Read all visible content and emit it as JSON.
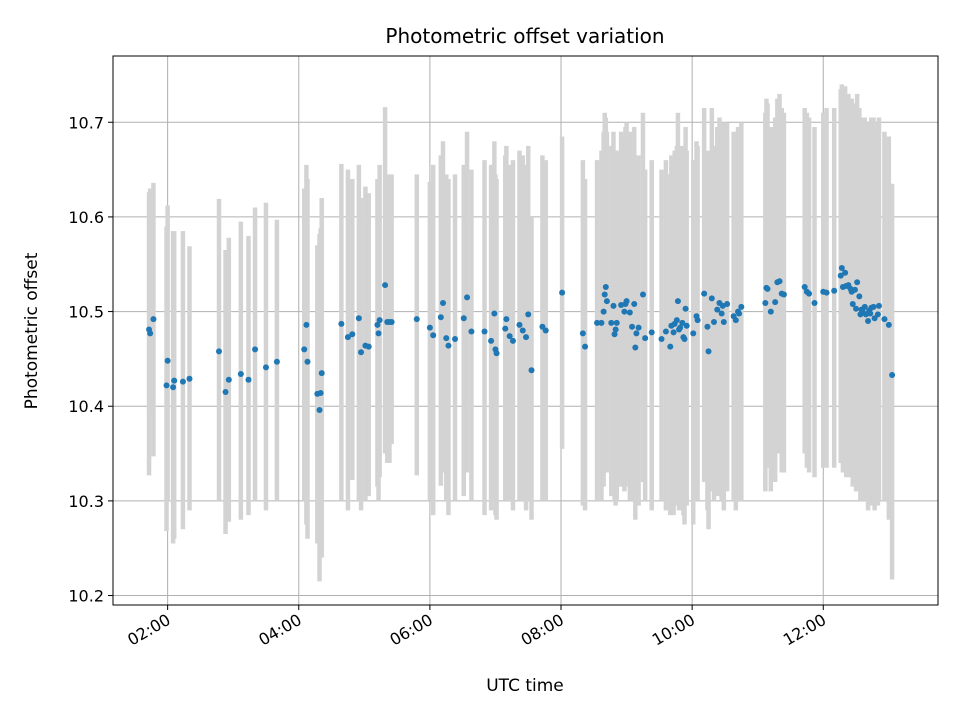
{
  "chart_data": {
    "type": "scatter",
    "title": "Photometric offset variation",
    "xlabel": "UTC time",
    "ylabel": "Photometric offset",
    "xlim": [
      "01:10",
      "13:45"
    ],
    "ylim": [
      10.19,
      10.77
    ],
    "x_ticks": [
      "02:00",
      "04:00",
      "06:00",
      "08:00",
      "10:00",
      "12:00"
    ],
    "y_ticks": [
      "10.2",
      "10.3",
      "10.4",
      "10.5",
      "10.6",
      "10.7"
    ],
    "grid": true,
    "point_color": "#1f77b4",
    "errorbar_color": "#d3d3d3",
    "series": [
      {
        "x": [
          "01:43",
          "01:44",
          "01:47",
          "01:59",
          "02:00",
          "02:05",
          "02:06",
          "02:14",
          "02:20",
          "02:47",
          "02:53",
          "02:56",
          "03:07",
          "03:14",
          "03:20",
          "03:30",
          "03:40",
          "04:05",
          "04:07",
          "04:08",
          "04:17",
          "04:19",
          "04:20",
          "04:21",
          "04:39",
          "04:45",
          "04:49",
          "04:55",
          "04:57",
          "05:01",
          "05:04",
          "05:12",
          "05:13",
          "05:14",
          "05:19",
          "05:21",
          "05:23",
          "05:25",
          "05:48",
          "06:00",
          "06:03",
          "06:10",
          "06:12",
          "06:15",
          "06:17",
          "06:23",
          "06:31",
          "06:34",
          "06:38",
          "06:50",
          "06:56",
          "06:59",
          "07:00",
          "07:01",
          "07:09",
          "07:10",
          "07:13",
          "07:16",
          "07:22",
          "07:25",
          "07:28",
          "07:30",
          "07:33",
          "07:43",
          "07:46",
          "08:01",
          "08:20",
          "08:22",
          "08:33",
          "08:37",
          "08:39",
          "08:40",
          "08:41",
          "08:42",
          "08:46",
          "08:48",
          "08:49",
          "08:50",
          "08:51",
          "08:55",
          "08:58",
          "08:59",
          "09:00",
          "09:03",
          "09:05",
          "09:07",
          "09:08",
          "09:09",
          "09:11",
          "09:15",
          "09:17",
          "09:23",
          "09:32",
          "09:36",
          "09:40",
          "09:41",
          "09:43",
          "09:44",
          "09:46",
          "09:47",
          "09:48",
          "09:49",
          "09:51",
          "09:52",
          "09:53",
          "09:54",
          "09:55",
          "10:01",
          "10:04",
          "10:05",
          "10:11",
          "10:14",
          "10:15",
          "10:18",
          "10:20",
          "10:23",
          "10:25",
          "10:27",
          "10:28",
          "10:29",
          "10:32",
          "10:38",
          "10:40",
          "10:42",
          "10:43",
          "10:45",
          "11:07",
          "11:08",
          "11:09",
          "11:12",
          "11:16",
          "11:18",
          "11:20",
          "11:22",
          "11:24",
          "11:43",
          "11:45",
          "11:47",
          "11:52",
          "12:00",
          "12:03",
          "12:10",
          "12:16",
          "12:17",
          "12:18",
          "12:20",
          "12:21",
          "12:23",
          "12:25",
          "12:26",
          "12:27",
          "12:29",
          "12:30",
          "12:31",
          "12:33",
          "12:34",
          "12:35",
          "12:36",
          "12:38",
          "12:39",
          "12:41",
          "12:42",
          "12:43",
          "12:44",
          "12:46",
          "12:47",
          "12:50",
          "12:51",
          "12:56",
          "13:00",
          "13:03"
        ],
        "y": [
          10.481,
          10.477,
          10.492,
          10.422,
          10.448,
          10.42,
          10.427,
          10.426,
          10.429,
          10.458,
          10.415,
          10.428,
          10.434,
          10.428,
          10.46,
          10.441,
          10.447,
          10.46,
          10.486,
          10.447,
          10.413,
          10.396,
          10.414,
          10.435,
          10.487,
          10.473,
          10.476,
          10.493,
          10.457,
          10.464,
          10.463,
          10.486,
          10.477,
          10.491,
          10.528,
          10.489,
          10.489,
          10.489,
          10.492,
          10.483,
          10.475,
          10.494,
          10.509,
          10.472,
          10.464,
          10.471,
          10.493,
          10.515,
          10.479,
          10.479,
          10.469,
          10.498,
          10.46,
          10.456,
          10.482,
          10.492,
          10.474,
          10.469,
          10.486,
          10.48,
          10.473,
          10.497,
          10.438,
          10.484,
          10.48,
          10.52,
          10.477,
          10.463,
          10.488,
          10.488,
          10.5,
          10.518,
          10.526,
          10.511,
          10.488,
          10.506,
          10.476,
          10.481,
          10.488,
          10.507,
          10.5,
          10.508,
          10.511,
          10.499,
          10.484,
          10.508,
          10.462,
          10.477,
          10.483,
          10.518,
          10.472,
          10.478,
          10.471,
          10.479,
          10.463,
          10.485,
          10.478,
          10.487,
          10.491,
          10.511,
          10.481,
          10.483,
          10.488,
          10.473,
          10.471,
          10.503,
          10.485,
          10.477,
          10.495,
          10.491,
          10.519,
          10.484,
          10.458,
          10.514,
          10.489,
          10.502,
          10.509,
          10.498,
          10.506,
          10.489,
          10.508,
          10.495,
          10.491,
          10.5,
          10.498,
          10.505,
          10.509,
          10.525,
          10.524,
          10.5,
          10.51,
          10.531,
          10.532,
          10.519,
          10.518,
          10.526,
          10.521,
          10.519,
          10.509,
          10.521,
          10.52,
          10.522,
          10.538,
          10.546,
          10.526,
          10.541,
          10.527,
          10.528,
          10.524,
          10.521,
          10.508,
          10.523,
          10.503,
          10.531,
          10.516,
          10.497,
          10.502,
          10.5,
          10.505,
          10.497,
          10.49,
          10.501,
          10.498,
          10.504,
          10.505,
          10.493,
          10.497,
          10.506,
          10.492,
          10.486,
          10.433
        ],
        "lo": [
          10.327,
          10.39,
          10.347,
          10.268,
          10.3,
          10.255,
          10.26,
          10.27,
          10.29,
          10.3,
          10.265,
          10.278,
          10.28,
          10.285,
          10.3,
          10.29,
          10.3,
          10.3,
          10.275,
          10.26,
          10.255,
          10.215,
          10.245,
          10.24,
          10.3,
          10.29,
          10.322,
          10.3,
          10.29,
          10.3,
          10.305,
          10.315,
          10.3,
          10.325,
          10.35,
          10.34,
          10.34,
          10.36,
          10.327,
          10.3,
          10.285,
          10.316,
          10.33,
          10.3,
          10.285,
          10.3,
          10.305,
          10.33,
          10.3,
          10.285,
          10.29,
          10.3,
          10.285,
          10.28,
          10.3,
          10.31,
          10.3,
          10.29,
          10.3,
          10.3,
          10.29,
          10.3,
          10.28,
          10.3,
          10.3,
          10.355,
          10.295,
          10.29,
          10.3,
          10.3,
          10.315,
          10.33,
          10.35,
          10.33,
          10.305,
          10.31,
          10.3,
          10.295,
          10.3,
          10.315,
          10.31,
          10.315,
          10.32,
          10.3,
          10.3,
          10.31,
          10.28,
          10.3,
          10.295,
          10.32,
          10.3,
          10.29,
          10.3,
          10.29,
          10.285,
          10.3,
          10.285,
          10.295,
          10.3,
          10.31,
          10.29,
          10.3,
          10.29,
          10.285,
          10.275,
          10.31,
          10.295,
          10.275,
          10.305,
          10.3,
          10.32,
          10.29,
          10.27,
          10.31,
          10.3,
          10.305,
          10.31,
          10.3,
          10.305,
          10.29,
          10.31,
          10.3,
          10.29,
          10.3,
          10.3,
          10.3,
          10.31,
          10.345,
          10.335,
          10.31,
          10.32,
          10.35,
          10.35,
          10.33,
          10.33,
          10.35,
          10.335,
          10.33,
          10.325,
          10.335,
          10.335,
          10.335,
          10.34,
          10.35,
          10.33,
          10.34,
          10.325,
          10.33,
          10.325,
          10.33,
          10.315,
          10.32,
          10.31,
          10.33,
          10.315,
          10.3,
          10.31,
          10.3,
          10.31,
          10.3,
          10.29,
          10.3,
          10.3,
          10.295,
          10.3,
          10.29,
          10.295,
          10.3,
          10.3,
          10.28,
          10.217
        ],
        "hi": [
          10.626,
          10.63,
          10.636,
          10.59,
          10.612,
          10.585,
          10.585,
          10.585,
          10.569,
          10.619,
          10.565,
          10.578,
          10.595,
          10.58,
          10.61,
          10.615,
          10.597,
          10.63,
          10.655,
          10.64,
          10.57,
          10.582,
          10.588,
          10.62,
          10.656,
          10.65,
          10.64,
          10.655,
          10.62,
          10.632,
          10.625,
          10.64,
          10.625,
          10.655,
          10.716,
          10.645,
          10.64,
          10.645,
          10.645,
          10.637,
          10.655,
          10.665,
          10.68,
          10.645,
          10.64,
          10.645,
          10.655,
          10.69,
          10.65,
          10.66,
          10.655,
          10.68,
          10.645,
          10.64,
          10.665,
          10.675,
          10.655,
          10.66,
          10.67,
          10.665,
          10.655,
          10.675,
          10.6,
          10.665,
          10.66,
          10.685,
          10.66,
          10.64,
          10.66,
          10.67,
          10.69,
          10.71,
          10.705,
          10.69,
          10.675,
          10.69,
          10.66,
          10.665,
          10.67,
          10.69,
          10.685,
          10.695,
          10.7,
          10.69,
          10.665,
          10.695,
          10.64,
          10.66,
          10.665,
          10.71,
          10.65,
          10.66,
          10.65,
          10.66,
          10.645,
          10.665,
          10.66,
          10.67,
          10.675,
          10.71,
          10.66,
          10.67,
          10.675,
          10.66,
          10.655,
          10.695,
          10.67,
          10.66,
          10.68,
          10.675,
          10.715,
          10.67,
          10.64,
          10.715,
          10.675,
          10.695,
          10.705,
          10.69,
          10.7,
          10.68,
          10.7,
          10.69,
          10.685,
          10.695,
          10.69,
          10.7,
          10.71,
          10.725,
          10.72,
          10.695,
          10.705,
          10.725,
          10.73,
          10.715,
          10.71,
          10.715,
          10.71,
          10.705,
          10.695,
          10.71,
          10.715,
          10.715,
          10.735,
          10.74,
          10.72,
          10.738,
          10.725,
          10.73,
          10.72,
          10.725,
          10.71,
          10.72,
          10.7,
          10.73,
          10.715,
          10.695,
          10.705,
          10.7,
          10.705,
          10.695,
          10.69,
          10.7,
          10.7,
          10.705,
          10.705,
          10.695,
          10.7,
          10.705,
          10.69,
          10.685,
          10.635
        ]
      }
    ]
  }
}
